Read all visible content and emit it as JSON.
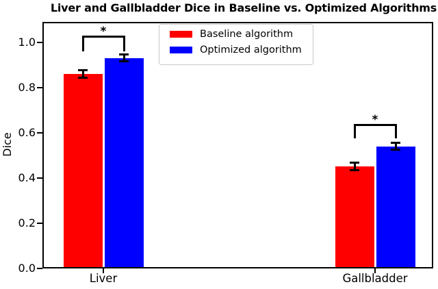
{
  "chart_data": {
    "type": "bar",
    "title": "Liver and Gallbladder Dice in Baseline vs. Optimized Algorithms",
    "xlabel": "",
    "ylabel": "Dice",
    "categories": [
      "Liver",
      "Gallbladder"
    ],
    "series": [
      {
        "name": "Baseline algorithm",
        "color": "#ff0000",
        "values": [
          0.86,
          0.45
        ],
        "errors": [
          0.017,
          0.017
        ]
      },
      {
        "name": "Optimized algorithm",
        "color": "#0000ff",
        "values": [
          0.93,
          0.54
        ],
        "errors": [
          0.015,
          0.015
        ]
      }
    ],
    "ylim": [
      0,
      1.09
    ],
    "yticks": [
      "0.0",
      "0.2",
      "0.4",
      "0.6",
      "0.8",
      "1.0"
    ],
    "grid": false,
    "error_bars": true,
    "legend_position": "upper center",
    "annotations": [
      {
        "group": "Liver",
        "label": "*"
      },
      {
        "group": "Gallbladder",
        "label": "*"
      }
    ],
    "colors": {
      "axis": "#000000",
      "background": "#ffffff",
      "legend_border": "#c9c9c9"
    }
  }
}
